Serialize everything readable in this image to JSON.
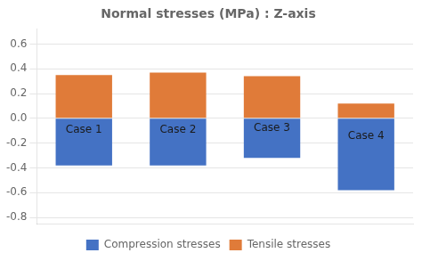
{
  "chart_data": {
    "type": "bar",
    "title": "Normal stresses (MPa) : Z-axis",
    "categories": [
      "Case 1",
      "Case 2",
      "Case 3",
      "Case 4"
    ],
    "series": [
      {
        "name": "Compression stresses",
        "color": "#4472C4",
        "values": [
          -0.38,
          -0.38,
          -0.32,
          -0.58
        ]
      },
      {
        "name": "Tensile stresses",
        "color": "#E07B39",
        "values": [
          0.35,
          0.37,
          0.34,
          0.12
        ]
      }
    ],
    "stacked": true,
    "ylim": [
      -0.85,
      0.72
    ],
    "yticks": [
      -0.8,
      -0.6,
      -0.4,
      -0.2,
      {
        "value": 0,
        "label": "0.0"
      },
      0.2,
      0.4,
      0.6
    ],
    "grid": true,
    "legend": "bottom",
    "tick_labels": "y"
  }
}
